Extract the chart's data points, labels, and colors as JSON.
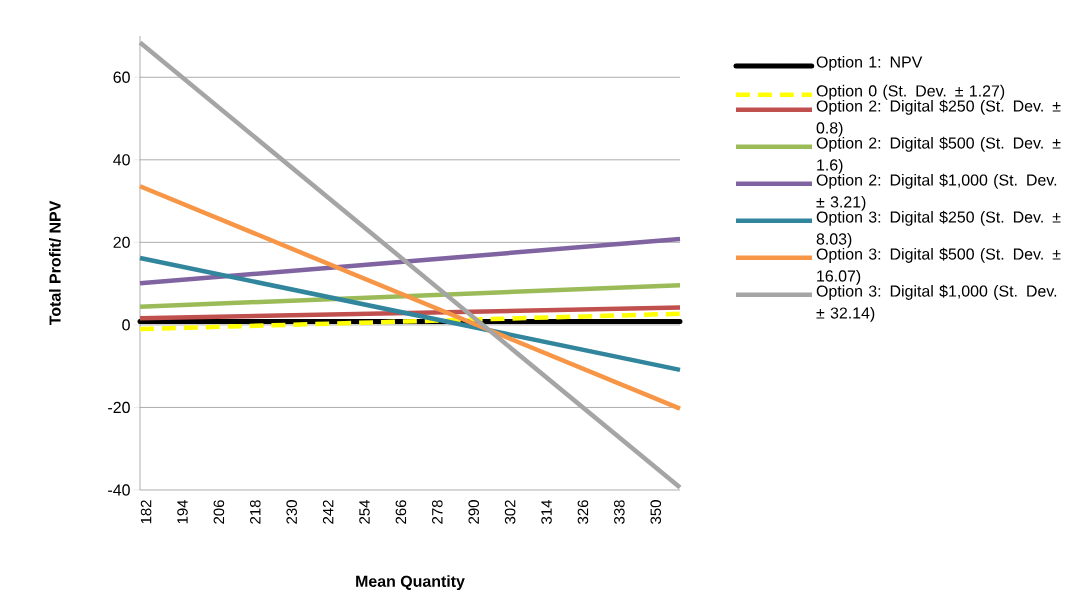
{
  "chart_data": {
    "type": "line",
    "xlabel": "Mean Quantity",
    "ylabel": "Total Profit/ NPV",
    "x": [
      180,
      358
    ],
    "series": [
      {
        "name": "Option 1: NPV",
        "color": "#000000",
        "values": [
          0.8,
          0.8
        ],
        "line_style": "dotted"
      },
      {
        "name": "Option 0 (St. Dev. ± 1.27)",
        "color": "#ffff00",
        "values": [
          -1,
          2.7
        ],
        "line_style": "dashed"
      },
      {
        "name": "Option 2: Digital $250 (St. Dev. ± 0.8)",
        "color": "#c0504d",
        "values": [
          1.6,
          4.2
        ]
      },
      {
        "name": "Option 2: Digital $500 (St. Dev. ± 1.6)",
        "color": "#9bbb59",
        "values": [
          4.4,
          9.6
        ]
      },
      {
        "name": "Option 2: Digital $1,000 (St. Dev. ± 3.21)",
        "color": "#8064a2",
        "values": [
          10.1,
          20.8
        ]
      },
      {
        "name": "Option 3: Digital $250 (St. Dev. ± 8.03)",
        "color": "#31859c",
        "values": [
          16.2,
          -10.9
        ]
      },
      {
        "name": "Option 3: Digital $500 (St. Dev. ± 16.07)",
        "color": "#f79646",
        "values": [
          33.6,
          -20.3
        ]
      },
      {
        "name": "Option 3: Digital $1,000 (St. Dev. ± 32.14)",
        "color": "#a5a5a5",
        "values": [
          68.4,
          -39.4
        ]
      }
    ],
    "xlim": [
      180,
      358
    ],
    "xticks": [
      182,
      194,
      206,
      218,
      230,
      242,
      254,
      266,
      278,
      290,
      302,
      314,
      326,
      338,
      350
    ],
    "ylim": [
      -40,
      70
    ],
    "yticks": [
      -40,
      -20,
      0,
      20,
      40,
      60
    ],
    "grid": "y",
    "legend": "right",
    "line_style": "solid",
    "marker": "none"
  }
}
